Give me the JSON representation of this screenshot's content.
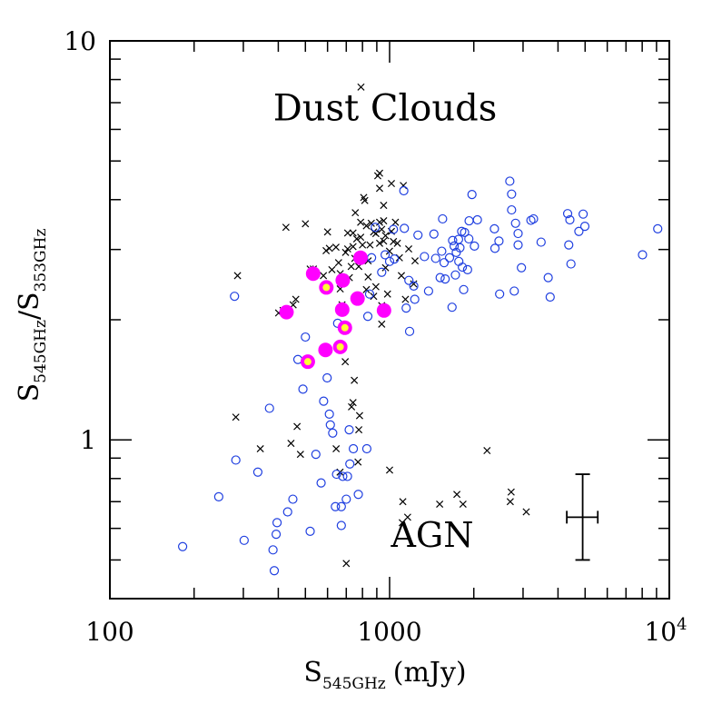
{
  "chart_data": {
    "type": "scatter",
    "xscale": "log",
    "yscale": "log",
    "xlim": [
      100,
      10000
    ],
    "ylim": [
      0.4,
      10
    ],
    "xlabel": {
      "main": "S",
      "sub": "545GHz",
      "tail": "(mJy)"
    },
    "ylabel": {
      "num_main": "S",
      "num_sub": "545GHz",
      "sep": "/",
      "den_main": "S",
      "den_sub": "353GHz"
    },
    "x_tick_labels": [
      {
        "value": 100,
        "text": "100"
      },
      {
        "value": 1000,
        "text": "1000"
      },
      {
        "value": 10000,
        "base": "10",
        "exp": "4"
      }
    ],
    "y_tick_labels": [
      {
        "value": 1,
        "text": "1"
      },
      {
        "value": 10,
        "text": "10"
      }
    ],
    "annotations": [
      {
        "text": "Dust Clouds",
        "x": 1000,
        "y": 6.8
      },
      {
        "text": "AGN",
        "x": 1000,
        "y": 0.58
      }
    ],
    "error_bar": {
      "x": 4900,
      "y": 0.64,
      "xlo": 4300,
      "xhi": 5550,
      "ylo": 0.5,
      "yhi": 0.82
    },
    "series": [
      {
        "marker": "cross",
        "color": "#000000",
        "points": [
          [
            286,
            2.58
          ],
          [
            401,
            2.08
          ],
          [
            416,
            2.11
          ],
          [
            426,
            3.41
          ],
          [
            452,
            2.18
          ],
          [
            462,
            2.25
          ],
          [
            480,
            0.92
          ],
          [
            534,
            2.68
          ],
          [
            500,
            3.48
          ],
          [
            520,
            2.68
          ],
          [
            541,
            2.62
          ],
          [
            580,
            2.58
          ],
          [
            593,
            2.98
          ],
          [
            622,
            2.67
          ],
          [
            600,
            3.32
          ],
          [
            609,
            3.02
          ],
          [
            643,
            3.04
          ],
          [
            657,
            2.78
          ],
          [
            666,
            2.61
          ],
          [
            666,
            2.39
          ],
          [
            676,
            2.18
          ],
          [
            686,
            2.49
          ],
          [
            696,
            2.95
          ],
          [
            708,
            3.3
          ],
          [
            708,
            3.01
          ],
          [
            718,
            2.55
          ],
          [
            729,
            2.72
          ],
          [
            740,
            3.3
          ],
          [
            740,
            3.05
          ],
          [
            751,
            2.85
          ],
          [
            754,
            3.71
          ],
          [
            763,
            3.19
          ],
          [
            776,
            2.72
          ],
          [
            788,
            3.51
          ],
          [
            788,
            3.22
          ],
          [
            800,
            3.08
          ],
          [
            808,
            4.05
          ],
          [
            815,
            3.98
          ],
          [
            826,
            3.44
          ],
          [
            826,
            2.38
          ],
          [
            838,
            2.81
          ],
          [
            838,
            2.56
          ],
          [
            851,
            3.08
          ],
          [
            860,
            3.49
          ],
          [
            877,
            3.32
          ],
          [
            877,
            2.29
          ],
          [
            893,
            3.29
          ],
          [
            893,
            2.42
          ],
          [
            907,
            4.59
          ],
          [
            921,
            4.27
          ],
          [
            921,
            4.66
          ],
          [
            921,
            3.51
          ],
          [
            921,
            3.11
          ],
          [
            937,
            3.37
          ],
          [
            937,
            2.17
          ],
          [
            937,
            1.95
          ],
          [
            952,
            3.87
          ],
          [
            952,
            3.54
          ],
          [
            952,
            3.15
          ],
          [
            967,
            3.25
          ],
          [
            967,
            2.7
          ],
          [
            983,
            2.32
          ],
          [
            999,
            2.97
          ],
          [
            1015,
            4.39
          ],
          [
            1015,
            3.33
          ],
          [
            1032,
            3.14
          ],
          [
            1049,
            3.51
          ],
          [
            1066,
            3.11
          ],
          [
            1084,
            2.86
          ],
          [
            1102,
            2.58
          ],
          [
            1120,
            4.34
          ],
          [
            1139,
            2.25
          ],
          [
            1170,
            3.01
          ],
          [
            1219,
            2.46
          ],
          [
            1233,
            2.81
          ],
          [
            790,
            7.66
          ],
          [
            694,
            1.57
          ],
          [
            748,
            1.41
          ],
          [
            740,
            1.24
          ],
          [
            731,
            1.21
          ],
          [
            282,
            1.14
          ],
          [
            345,
            0.95
          ],
          [
            444,
            0.98
          ],
          [
            467,
            1.08
          ],
          [
            644,
            0.95
          ],
          [
            665,
            0.83
          ],
          [
            771,
            0.88
          ],
          [
            776,
            1.06
          ],
          [
            781,
            1.15
          ],
          [
            1000,
            0.84
          ],
          [
            1115,
            0.7
          ],
          [
            1110,
            0.62
          ],
          [
            1160,
            0.64
          ],
          [
            1510,
            0.69
          ],
          [
            1740,
            0.73
          ],
          [
            1830,
            0.69
          ],
          [
            2230,
            0.94
          ],
          [
            2700,
            0.7
          ],
          [
            2720,
            0.74
          ],
          [
            3080,
            0.66
          ],
          [
            700,
            0.49
          ]
        ]
      },
      {
        "marker": "open-circle",
        "color": "#1f3fe0",
        "points": [
          [
            182,
            0.54
          ],
          [
            245,
            0.72
          ],
          [
            279,
            2.29
          ],
          [
            282,
            0.89
          ],
          [
            302,
            0.56
          ],
          [
            338,
            0.83
          ],
          [
            372,
            1.2
          ],
          [
            383,
            0.53
          ],
          [
            387,
            0.47
          ],
          [
            393,
            0.58
          ],
          [
            396,
            0.62
          ],
          [
            432,
            0.66
          ],
          [
            451,
            0.71
          ],
          [
            470,
            1.59
          ],
          [
            490,
            1.34
          ],
          [
            500,
            1.81
          ],
          [
            520,
            0.59
          ],
          [
            545,
            0.92
          ],
          [
            569,
            0.78
          ],
          [
            595,
            1.69
          ],
          [
            581,
            1.25
          ],
          [
            598,
            1.43
          ],
          [
            609,
            1.16
          ],
          [
            614,
            1.09
          ],
          [
            626,
            1.04
          ],
          [
            640,
            0.68
          ],
          [
            646,
            0.82
          ],
          [
            652,
            1.96
          ],
          [
            672,
            0.61
          ],
          [
            672,
            0.68
          ],
          [
            680,
            0.81
          ],
          [
            700,
            0.71
          ],
          [
            707,
            0.81
          ],
          [
            717,
            1.06
          ],
          [
            721,
            0.87
          ],
          [
            742,
            0.95
          ],
          [
            773,
            0.73
          ],
          [
            829,
            0.95
          ],
          [
            836,
            2.04
          ],
          [
            848,
            2.32
          ],
          [
            862,
            2.86
          ],
          [
            889,
            3.41
          ],
          [
            937,
            2.63
          ],
          [
            964,
            2.91
          ],
          [
            1000,
            2.8
          ],
          [
            1032,
            3.37
          ],
          [
            1040,
            2.84
          ],
          [
            1124,
            4.21
          ],
          [
            1129,
            3.39
          ],
          [
            1146,
            2.14
          ],
          [
            1172,
            2.51
          ],
          [
            1179,
            1.87
          ],
          [
            1220,
            2.43
          ],
          [
            1230,
            2.25
          ],
          [
            1263,
            3.26
          ],
          [
            1332,
            2.88
          ],
          [
            1378,
            2.36
          ],
          [
            1440,
            3.28
          ],
          [
            1461,
            2.85
          ],
          [
            1516,
            2.55
          ],
          [
            1536,
            2.97
          ],
          [
            1547,
            3.58
          ],
          [
            1566,
            2.78
          ],
          [
            1580,
            2.53
          ],
          [
            1638,
            2.86
          ],
          [
            1672,
            2.15
          ],
          [
            1680,
            3.16
          ],
          [
            1701,
            3.06
          ],
          [
            1719,
            2.59
          ],
          [
            1731,
            2.95
          ],
          [
            1764,
            3.18
          ],
          [
            1768,
            2.8
          ],
          [
            1784,
            3.03
          ],
          [
            1810,
            3.33
          ],
          [
            1820,
            2.71
          ],
          [
            1840,
            2.38
          ],
          [
            1854,
            3.31
          ],
          [
            1900,
            2.67
          ],
          [
            1920,
            3.19
          ],
          [
            1924,
            3.54
          ],
          [
            1970,
            4.12
          ],
          [
            2010,
            3.06
          ],
          [
            2060,
            3.56
          ],
          [
            2370,
            3.38
          ],
          [
            2380,
            3.02
          ],
          [
            2460,
            3.15
          ],
          [
            2474,
            2.32
          ],
          [
            2690,
            4.45
          ],
          [
            2730,
            4.13
          ],
          [
            2730,
            3.77
          ],
          [
            2790,
            2.36
          ],
          [
            2820,
            3.49
          ],
          [
            2880,
            3.29
          ],
          [
            2880,
            3.08
          ],
          [
            2960,
            2.7
          ],
          [
            3200,
            3.55
          ],
          [
            3270,
            3.58
          ],
          [
            3480,
            3.13
          ],
          [
            3690,
            2.55
          ],
          [
            3750,
            2.28
          ],
          [
            4330,
            3.69
          ],
          [
            4370,
            3.08
          ],
          [
            4410,
            3.56
          ],
          [
            4450,
            2.76
          ],
          [
            4750,
            3.33
          ],
          [
            4920,
            3.68
          ],
          [
            4990,
            3.43
          ],
          [
            8020,
            2.91
          ],
          [
            9090,
            3.38
          ]
        ]
      },
      {
        "marker": "filled-circle",
        "color": "#ff00ff",
        "points": [
          [
            428,
            2.09
          ],
          [
            533,
            2.61
          ],
          [
            590,
            1.68
          ],
          [
            677,
            2.12
          ],
          [
            680,
            2.51
          ],
          [
            768,
            2.26
          ],
          [
            787,
            2.86
          ],
          [
            955,
            2.11
          ]
        ]
      },
      {
        "marker": "ring-yellow",
        "color": "#ff00ff",
        "inner_color": "#ffff33",
        "points": [
          [
            510,
            1.57
          ],
          [
            594,
            2.41
          ],
          [
            666,
            1.71
          ],
          [
            692,
            1.91
          ]
        ]
      }
    ]
  }
}
